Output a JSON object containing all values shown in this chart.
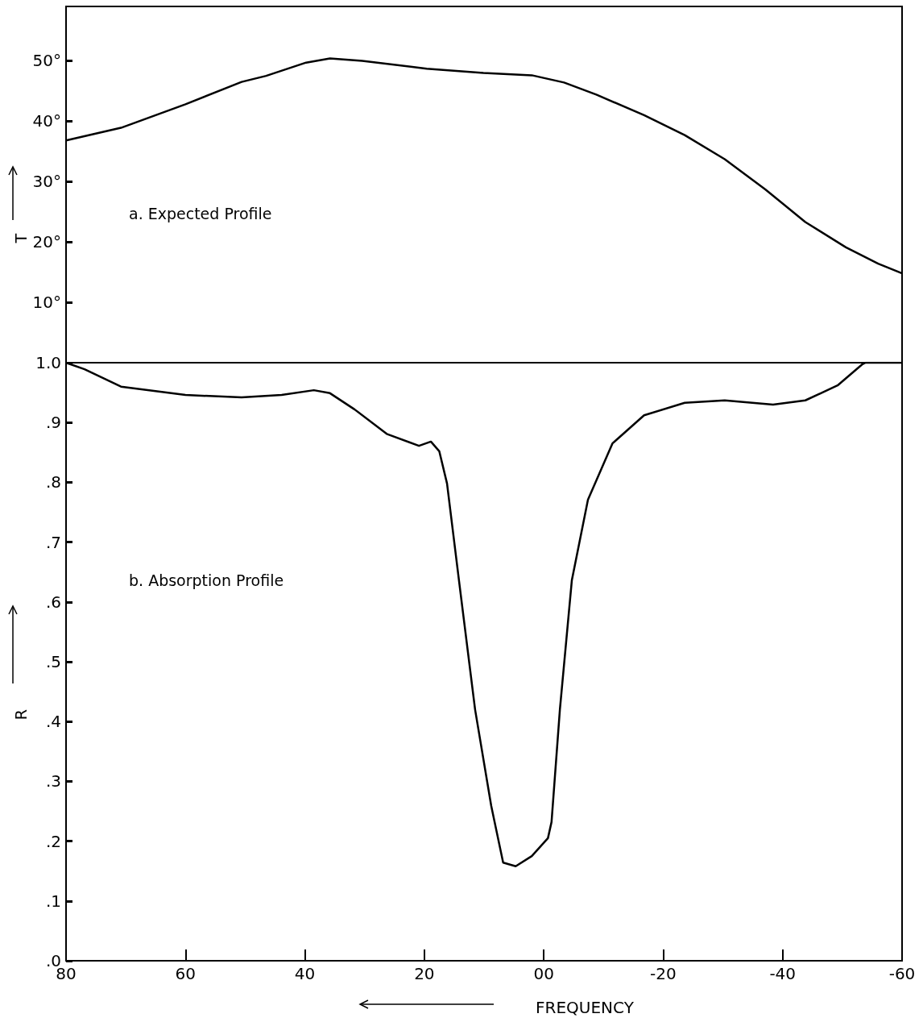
{
  "chart_data": [
    {
      "type": "line",
      "ylabel": "T",
      "annotations": [
        "a. Expected Profile"
      ],
      "tick_labels": "y",
      "grid": false,
      "marker": "none",
      "line_style": "solid",
      "xlim": [
        80,
        -60
      ],
      "ylim": [
        0,
        59
      ],
      "yticks": [
        {
          "value": 10,
          "label": "10°"
        },
        {
          "value": 20,
          "label": "20°"
        },
        {
          "value": 30,
          "label": "30°"
        },
        {
          "value": 40,
          "label": "40°"
        },
        {
          "value": 50,
          "label": "50°"
        }
      ],
      "series": [
        {
          "color": "#000000",
          "x": [
            80,
            70.8,
            60,
            50.6,
            46.5,
            39.8,
            35.8,
            30.4,
            19.6,
            10.1,
            2,
            -3.4,
            -8.8,
            -16.8,
            -23.6,
            -30.3,
            -37.1,
            -43.8,
            -50.6,
            -56,
            -60
          ],
          "values": [
            36.8,
            38.9,
            42.8,
            46.5,
            47.5,
            49.7,
            50.4,
            50,
            48.7,
            48,
            47.6,
            46.4,
            44.4,
            41,
            37.7,
            33.7,
            28.7,
            23.3,
            19.1,
            16.4,
            14.8
          ]
        }
      ]
    },
    {
      "type": "line",
      "ylabel": "R",
      "xlabel": "FREQUENCY",
      "annotations": [
        "b. Absorption Profile"
      ],
      "grid": false,
      "marker": "none",
      "line_style": "solid",
      "xlim": [
        80,
        -60
      ],
      "xticks": [
        80,
        60,
        40,
        20,
        {
          "value": 0,
          "label": "00"
        },
        -20,
        -40,
        -60
      ],
      "ylim": [
        0,
        1
      ],
      "yticks": [
        {
          "value": 0,
          "label": ".0"
        },
        {
          "value": 0.1,
          "label": ".1"
        },
        {
          "value": 0.2,
          "label": ".2"
        },
        {
          "value": 0.3,
          "label": ".3"
        },
        {
          "value": 0.4,
          "label": ".4"
        },
        {
          "value": 0.5,
          "label": ".5"
        },
        {
          "value": 0.6,
          "label": ".6"
        },
        {
          "value": 0.7,
          "label": ".7"
        },
        {
          "value": 0.8,
          "label": ".8"
        },
        {
          "value": 0.9,
          "label": ".9"
        },
        {
          "value": 1,
          "label": "1.0"
        }
      ],
      "series": [
        {
          "color": "#000000",
          "x": [
            80,
            76.9,
            70.8,
            60,
            50.6,
            43.9,
            38.5,
            35.8,
            31.7,
            26.3,
            20.9,
            18.9,
            17.5,
            16.2,
            14.2,
            11.5,
            8.8,
            6.8,
            4.7,
            2,
            -0.7,
            -1.3,
            -2.7,
            -4.7,
            -7.4,
            -11.5,
            -16.8,
            -23.6,
            -30.3,
            -38.4,
            -43.8,
            -49.2,
            -53.3,
            -53.9,
            -60
          ],
          "values": [
            1,
            0.989,
            0.96,
            0.946,
            0.942,
            0.946,
            0.954,
            0.949,
            0.922,
            0.881,
            0.861,
            0.868,
            0.852,
            0.798,
            0.636,
            0.42,
            0.259,
            0.164,
            0.158,
            0.175,
            0.205,
            0.232,
            0.42,
            0.636,
            0.771,
            0.865,
            0.912,
            0.933,
            0.937,
            0.93,
            0.937,
            0.962,
            0.997,
            1,
            1
          ]
        }
      ]
    }
  ]
}
